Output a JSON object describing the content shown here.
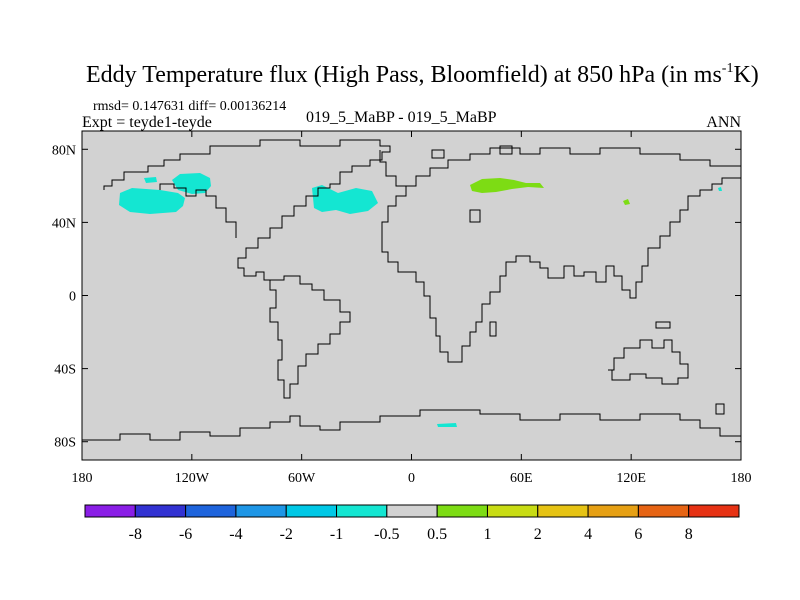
{
  "chart_data": {
    "type": "heatmap",
    "title": "Eddy Temperature flux (High Pass, Bloomfield) at 850 hPa (in ms",
    "title_sup": "-1",
    "title_end": "K)",
    "stats": "rmsd= 0.147631 diff= 0.00136214",
    "experiment": "Expt = teyde1-teyde",
    "runs": "019_5_MaBP - 019_5_MaBP",
    "season": "ANN",
    "x_axis": {
      "range": [
        -180,
        180
      ],
      "ticks": [
        {
          "value": -180,
          "label": "180"
        },
        {
          "value": -120,
          "label": "120W"
        },
        {
          "value": -60,
          "label": "60W"
        },
        {
          "value": 0,
          "label": "0"
        },
        {
          "value": 60,
          "label": "60E"
        },
        {
          "value": 120,
          "label": "120E"
        },
        {
          "value": 180,
          "label": "180"
        }
      ]
    },
    "y_axis": {
      "range": [
        -90,
        90
      ],
      "ticks": [
        {
          "value": 80,
          "label": "80N"
        },
        {
          "value": 40,
          "label": "40N"
        },
        {
          "value": 0,
          "label": "0"
        },
        {
          "value": -40,
          "label": "40S"
        },
        {
          "value": -80,
          "label": "80S"
        }
      ]
    },
    "colorbar": {
      "colors": [
        "#8a1ee6",
        "#3232d2",
        "#1e64dc",
        "#1e96e6",
        "#00c8e6",
        "#14e6d2",
        "#d2d2d2",
        "#7ddc14",
        "#c8dc14",
        "#e6c314",
        "#e6a014",
        "#e66414",
        "#e63214"
      ],
      "labels": [
        "-8",
        "-6",
        "-4",
        "-2",
        "-1",
        "-0.5",
        "0.5",
        "1",
        "2",
        "4",
        "6",
        "8"
      ]
    },
    "background_color": "#d2d2d2",
    "anomalies": [
      {
        "region": "North Pacific",
        "lon": -160,
        "lat": 48,
        "level": "-1 to -0.5",
        "color": "#14e6d2"
      },
      {
        "region": "Gulf of Alaska",
        "lon": -150,
        "lat": 56,
        "level": "-1 to -0.5",
        "color": "#14e6d2"
      },
      {
        "region": "North Atlantic",
        "lon": -40,
        "lat": 50,
        "level": "-1 to -0.5",
        "color": "#14e6d2"
      },
      {
        "region": "Western Russia",
        "lon": 42,
        "lat": 58,
        "level": "0.5 to 1",
        "color": "#7ddc14"
      },
      {
        "region": "NE Asia",
        "lon": 120,
        "lat": 50,
        "level": "0.5 to 1",
        "color": "#7ddc14"
      },
      {
        "region": "Southern Ocean",
        "lon": 20,
        "lat": -72,
        "level": "-1 to -0.5",
        "color": "#14e6d2"
      }
    ]
  }
}
